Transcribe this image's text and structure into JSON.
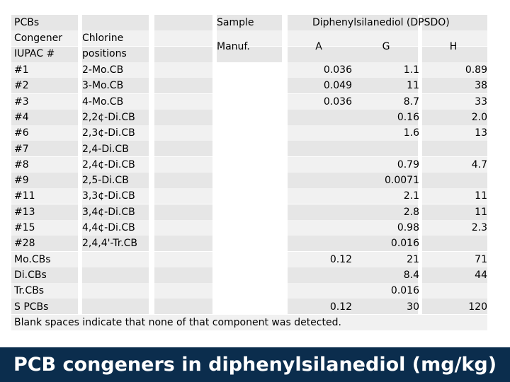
{
  "header": {
    "col1_line1": "PCBs",
    "col1_line2": "Congener",
    "col1_line3": "IUPAC #",
    "col2_line1": "Chlorine",
    "col2_line2": "positions",
    "sample": "Sample",
    "manuf": "Manuf.",
    "dpsdo": "Diphenylsilanediol (DPSDO)",
    "col_a": "A",
    "col_g": "G",
    "col_h": "H"
  },
  "rows": [
    {
      "congener": "#1",
      "chlorine": "2-Mo.CB",
      "a": "0.036",
      "g": "1.1",
      "h": "0.89"
    },
    {
      "congener": "#2",
      "chlorine": "3-Mo.CB",
      "a": "0.049",
      "g": "11",
      "h": "38"
    },
    {
      "congener": "#3",
      "chlorine": "4-Mo.CB",
      "a": "0.036",
      "g": "8.7",
      "h": "33"
    },
    {
      "congener": "#4",
      "chlorine": "2,2¢-Di.CB",
      "a": "",
      "g": "0.16",
      "h": "2.0"
    },
    {
      "congener": "#6",
      "chlorine": "2,3¢-Di.CB",
      "a": "",
      "g": "1.6",
      "h": "13"
    },
    {
      "congener": "#7",
      "chlorine": "2,4-Di.CB",
      "a": "",
      "g": "",
      "h": ""
    },
    {
      "congener": "#8",
      "chlorine": "2,4¢-Di.CB",
      "a": "",
      "g": "0.79",
      "h": "4.7"
    },
    {
      "congener": "#9",
      "chlorine": "2,5-Di.CB",
      "a": "",
      "g": "0.0071",
      "h": ""
    },
    {
      "congener": "#11",
      "chlorine": "3,3¢-Di.CB",
      "a": "",
      "g": "2.1",
      "h": "11"
    },
    {
      "congener": "#13",
      "chlorine": "3,4¢-Di.CB",
      "a": "",
      "g": "2.8",
      "h": "11"
    },
    {
      "congener": "#15",
      "chlorine": "4,4¢-Di.CB",
      "a": "",
      "g": "0.98",
      "h": "2.3"
    },
    {
      "congener": "#28",
      "chlorine": "2,4,4'-Tr.CB",
      "a": "",
      "g": "0.016",
      "h": ""
    },
    {
      "congener": "Mo.CBs",
      "chlorine": "",
      "a": "0.12",
      "g": "21",
      "h": "71"
    },
    {
      "congener": "Di.CBs",
      "chlorine": "",
      "a": "",
      "g": "8.4",
      "h": "44"
    },
    {
      "congener": "Tr.CBs",
      "chlorine": "",
      "a": "",
      "g": "0.016",
      "h": ""
    },
    {
      "congener": "S PCBs",
      "chlorine": "",
      "a": "0.12",
      "g": "30",
      "h": "120"
    }
  ],
  "note": "Blank spaces indicate that none of that component was detected.",
  "footer_title": "PCB congeners in diphenylsilanediol (mg/kg)"
}
